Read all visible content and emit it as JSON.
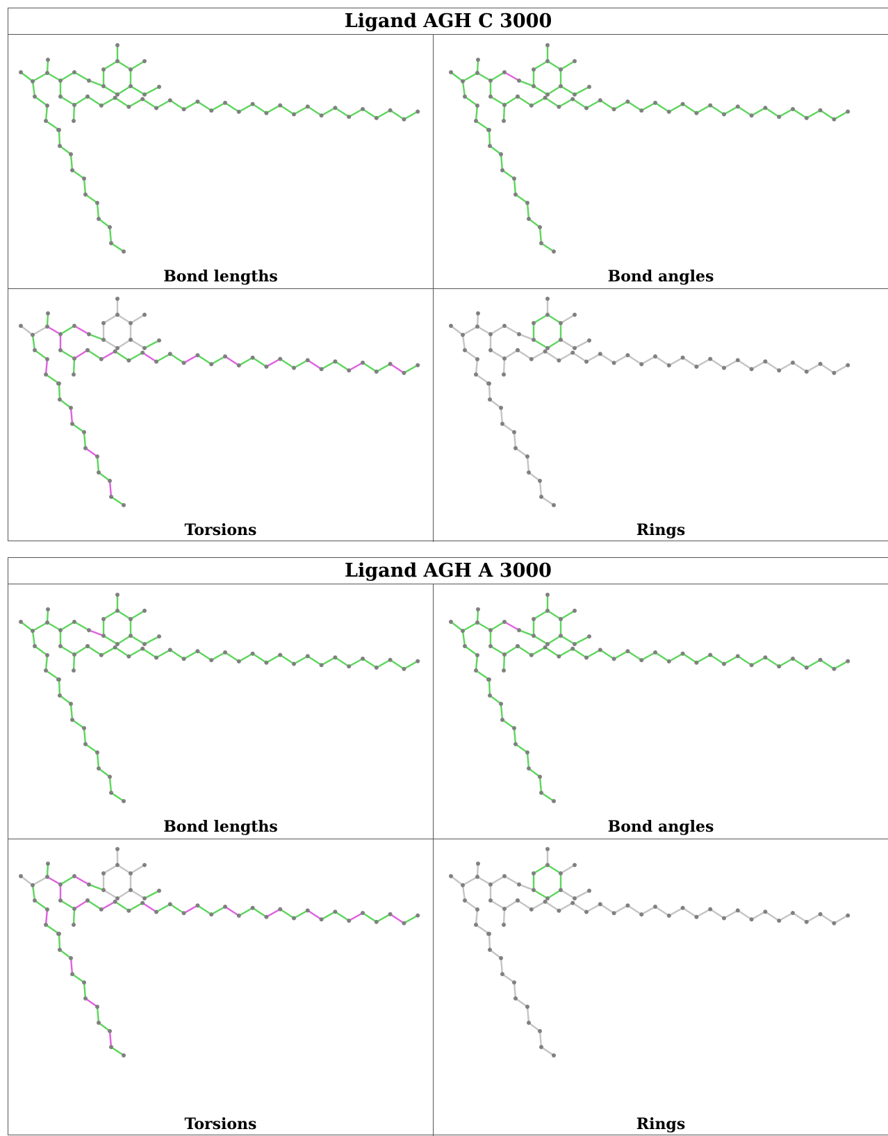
{
  "colors": {
    "green": "#5cd65c",
    "magenta": "#e060e0",
    "grey": "#c4c4c4",
    "atom": "#808080"
  },
  "ligands": [
    {
      "title": "Ligand AGH C 3000",
      "panels": [
        {
          "caption": "Bond lengths",
          "coloring": "all-green"
        },
        {
          "caption": "Bond angles",
          "coloring": "angles-one-magenta"
        },
        {
          "caption": "Torsions",
          "coloring": "torsions-alternating"
        },
        {
          "caption": "Rings",
          "coloring": "ring-only"
        }
      ]
    },
    {
      "title": "Ligand AGH A 3000",
      "panels": [
        {
          "caption": "Bond lengths",
          "coloring": "lengths-one-magenta"
        },
        {
          "caption": "Bond angles",
          "coloring": "angles-one-magenta"
        },
        {
          "caption": "Torsions",
          "coloring": "torsions-alternating"
        },
        {
          "caption": "Rings",
          "coloring": "ring-only"
        }
      ]
    }
  ]
}
